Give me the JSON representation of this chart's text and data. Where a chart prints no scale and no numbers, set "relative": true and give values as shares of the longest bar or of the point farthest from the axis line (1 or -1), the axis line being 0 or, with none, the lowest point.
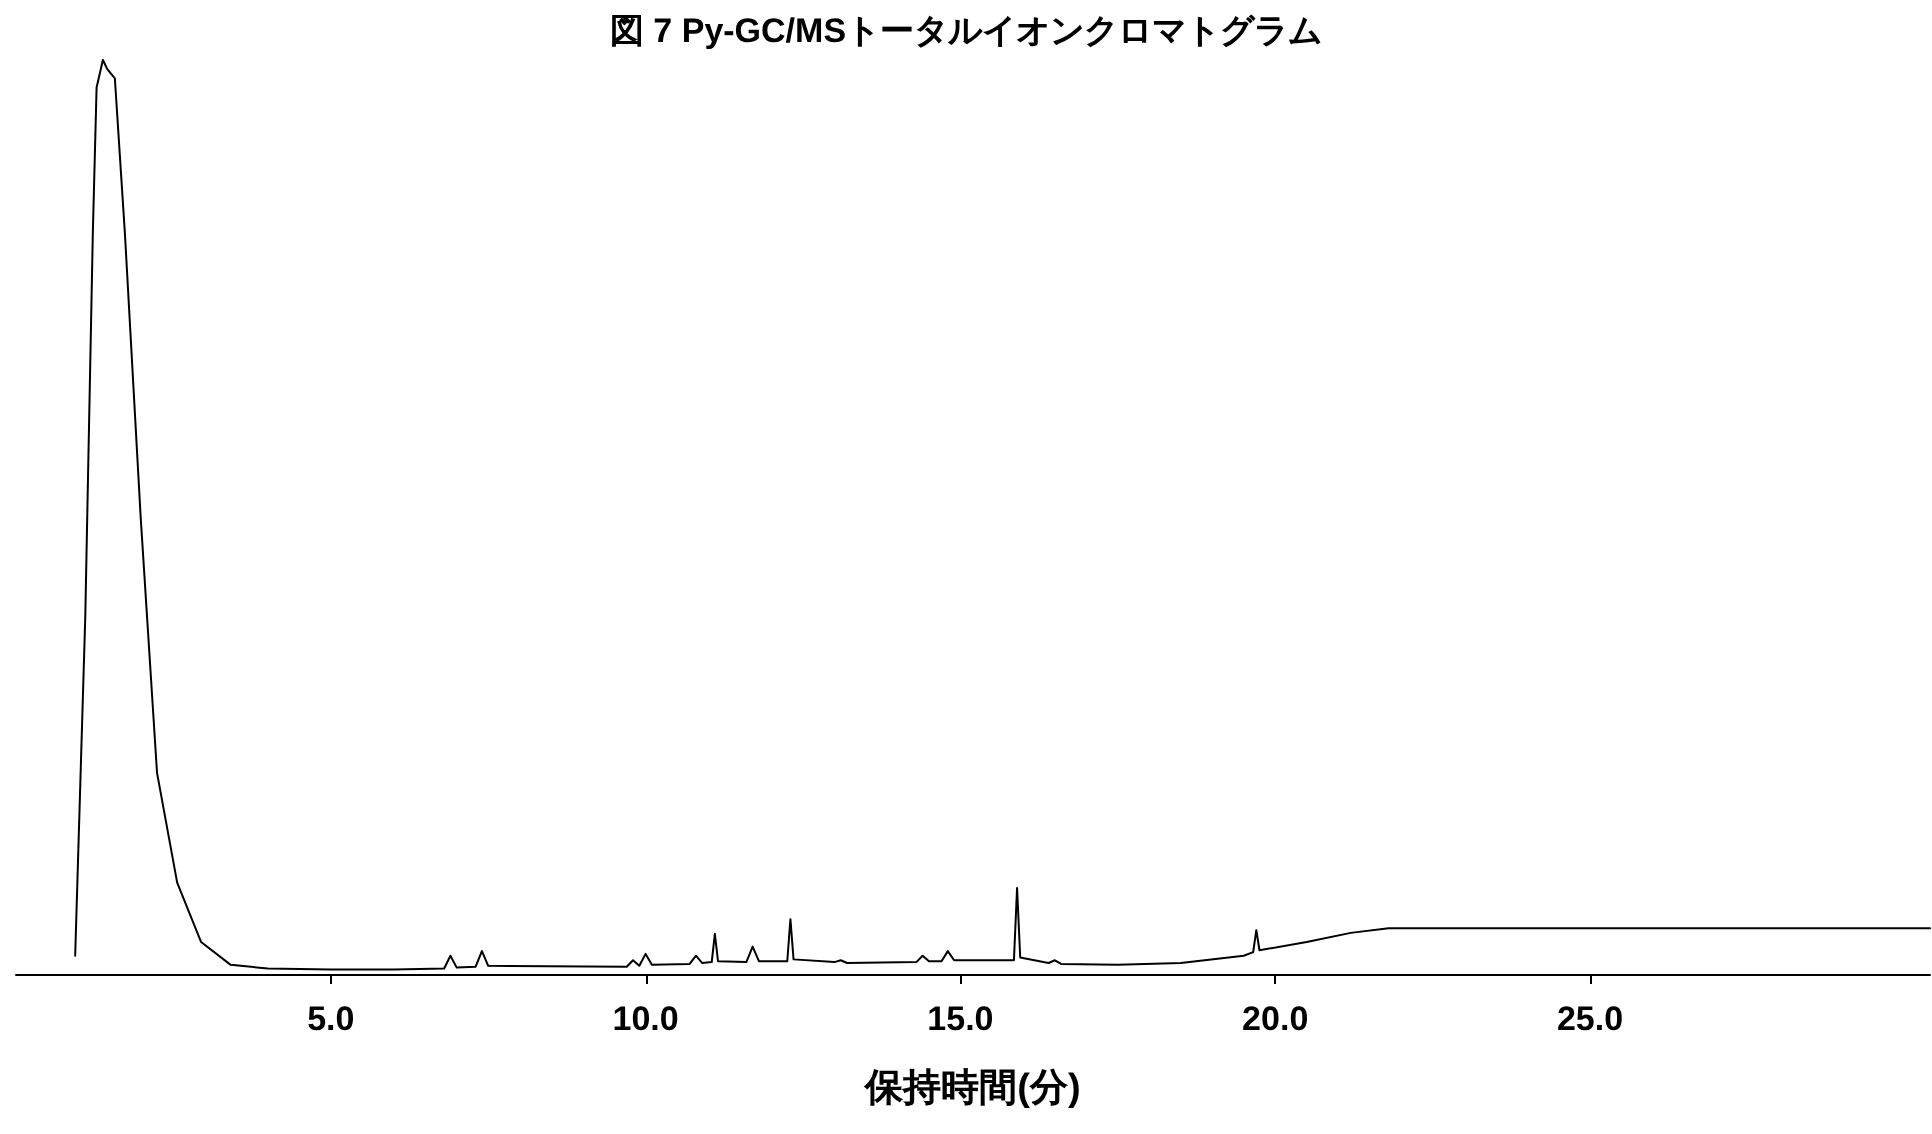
{
  "chart_data": {
    "type": "line",
    "title": "図 7 Py-GC/MSトータルイオンクロマトグラム",
    "xlabel": "保持時間(分)",
    "relative": true,
    "tick_labels": "x",
    "grid": false,
    "marker": "none",
    "line_style": "solid",
    "xlim": [
      0,
      30.4
    ],
    "xticks": [
      {
        "value": 5,
        "label": "5.0"
      },
      {
        "value": 10,
        "label": "10.0"
      },
      {
        "value": 15,
        "label": "15.0"
      },
      {
        "value": 20,
        "label": "20.0"
      },
      {
        "value": 25,
        "label": "25.0"
      }
    ],
    "series": [
      {
        "color": "#000000",
        "x": [
          0.94,
          1.1,
          1.22,
          1.28,
          1.38,
          1.45,
          1.57,
          1.73,
          1.98,
          2.24,
          2.56,
          2.94,
          3.41,
          4.0,
          5.0,
          6.0,
          6.8,
          6.9,
          7.0,
          7.3,
          7.4,
          7.5,
          9.7,
          9.8,
          9.9,
          10.0,
          10.1,
          10.7,
          10.8,
          10.9,
          11.05,
          11.1,
          11.15,
          11.6,
          11.7,
          11.8,
          12.25,
          12.3,
          12.35,
          13.0,
          13.1,
          13.2,
          14.3,
          14.4,
          14.5,
          14.7,
          14.8,
          14.9,
          15.85,
          15.9,
          15.95,
          16.4,
          16.5,
          16.6,
          17.5,
          18.5,
          19.5,
          19.65,
          19.7,
          19.75,
          20.5,
          21.2,
          21.8,
          23.0,
          25.0,
          27.0,
          30.4
        ],
        "values": [
          0.02,
          0.39,
          0.81,
          0.97,
          1.0,
          0.99,
          0.98,
          0.81,
          0.5,
          0.22,
          0.1,
          0.035,
          0.01,
          0.006,
          0.005,
          0.005,
          0.006,
          0.02,
          0.007,
          0.008,
          0.025,
          0.009,
          0.008,
          0.015,
          0.009,
          0.022,
          0.01,
          0.011,
          0.02,
          0.012,
          0.013,
          0.044,
          0.014,
          0.013,
          0.03,
          0.014,
          0.014,
          0.06,
          0.016,
          0.013,
          0.015,
          0.012,
          0.013,
          0.02,
          0.014,
          0.014,
          0.025,
          0.015,
          0.015,
          0.094,
          0.018,
          0.012,
          0.015,
          0.011,
          0.01,
          0.012,
          0.02,
          0.024,
          0.048,
          0.026,
          0.035,
          0.045,
          0.05,
          0.05,
          0.05,
          0.05,
          0.05
        ]
      }
    ]
  }
}
